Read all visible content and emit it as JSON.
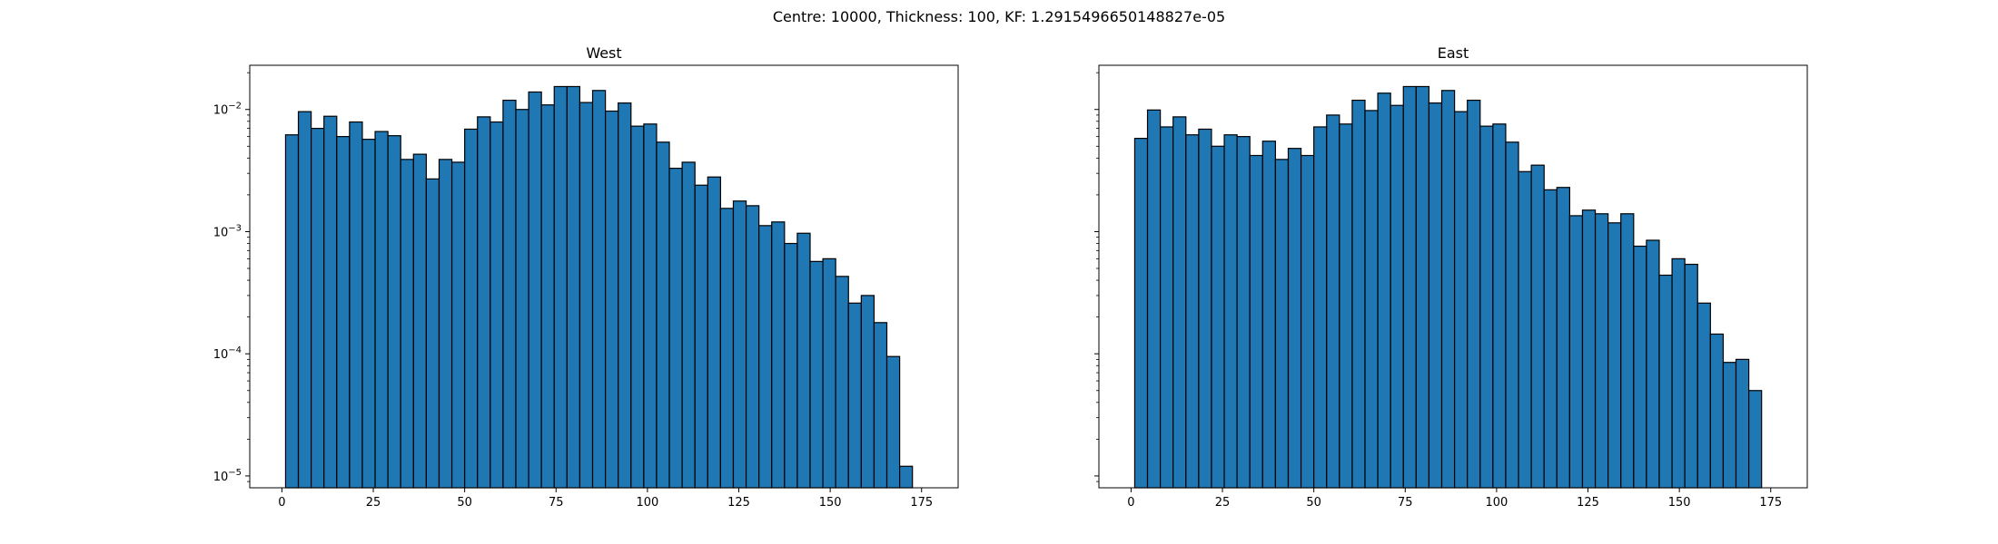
{
  "figure": {
    "suptitle": "Centre: 10000, Thickness: 100, KF: 1.2915496650148827e-05"
  },
  "chart_data": [
    {
      "type": "bar",
      "title": "West",
      "xlabel": "",
      "ylabel": "",
      "yscale": "log",
      "ylim": [
        8e-06,
        0.023
      ],
      "xlim": [
        -8.8,
        185.0
      ],
      "xticks": [
        0,
        25,
        50,
        75,
        100,
        125,
        150,
        175
      ],
      "xtick_labels": [
        "0",
        "25",
        "50",
        "75",
        "100",
        "125",
        "150",
        "175"
      ],
      "yticks": [
        1e-05,
        0.0001,
        0.001,
        0.01
      ],
      "ytick_labels": [
        "10^-5",
        "10^-4",
        "10^-3",
        "10^-2"
      ],
      "bin_start": 1.0,
      "bin_width": 3.5,
      "values": [
        0.0062,
        0.0096,
        0.007,
        0.0088,
        0.006,
        0.0079,
        0.0057,
        0.0066,
        0.0061,
        0.0039,
        0.0043,
        0.0027,
        0.0039,
        0.0037,
        0.0069,
        0.0087,
        0.0079,
        0.0119,
        0.01,
        0.0139,
        0.0109,
        0.0154,
        0.0154,
        0.0114,
        0.0143,
        0.0097,
        0.0113,
        0.0073,
        0.0076,
        0.0054,
        0.0033,
        0.0037,
        0.0024,
        0.0028,
        0.00155,
        0.00178,
        0.00163,
        0.00112,
        0.0012,
        0.0008,
        0.00097,
        0.00057,
        0.0006,
        0.00043,
        0.00026,
        0.0003,
        0.00018,
        9.5e-05,
        1.2e-05
      ],
      "bar_color": "#1f77b4",
      "edge_color": "#000000",
      "grid": false
    },
    {
      "type": "bar",
      "title": "East",
      "xlabel": "",
      "ylabel": "",
      "yscale": "log",
      "ylim": [
        8e-06,
        0.023
      ],
      "xlim": [
        -8.8,
        185.0
      ],
      "xticks": [
        0,
        25,
        50,
        75,
        100,
        125,
        150,
        175
      ],
      "xtick_labels": [
        "0",
        "25",
        "50",
        "75",
        "100",
        "125",
        "150",
        "175"
      ],
      "yticks": [
        1e-05,
        0.0001,
        0.001,
        0.01
      ],
      "ytick_labels": [],
      "bin_start": 1.0,
      "bin_width": 3.5,
      "values": [
        0.0058,
        0.0099,
        0.0072,
        0.0087,
        0.0062,
        0.0069,
        0.005,
        0.0062,
        0.006,
        0.0042,
        0.0055,
        0.0039,
        0.0048,
        0.0042,
        0.0072,
        0.009,
        0.0076,
        0.0119,
        0.0098,
        0.0136,
        0.0108,
        0.0154,
        0.0154,
        0.0113,
        0.0143,
        0.0096,
        0.0119,
        0.0073,
        0.0076,
        0.0054,
        0.0031,
        0.0035,
        0.0022,
        0.0023,
        0.00135,
        0.0015,
        0.0014,
        0.00118,
        0.0014,
        0.00076,
        0.00085,
        0.00044,
        0.0006,
        0.00054,
        0.00026,
        0.000145,
        8.5e-05,
        9e-05,
        5e-05
      ],
      "bar_color": "#1f77b4",
      "edge_color": "#000000",
      "grid": false
    }
  ]
}
